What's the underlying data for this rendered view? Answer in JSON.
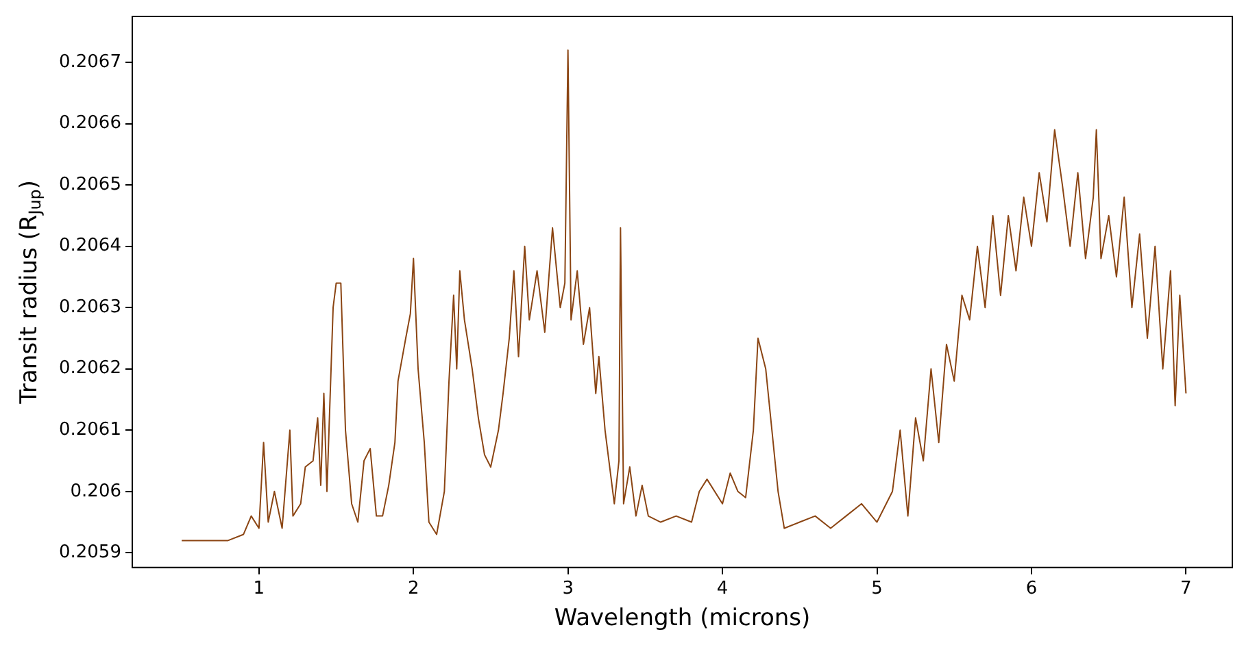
{
  "chart_data": {
    "type": "line",
    "xlabel": "Wavelength (microns)",
    "ylabel": "Transit radius (R$_{Jup}$)",
    "xlim": [
      0.18,
      7.3
    ],
    "xticks": [
      1,
      2,
      3,
      4,
      5,
      6,
      7
    ],
    "ylim": [
      0.205876,
      0.206775
    ],
    "yticks": [
      0.2059,
      0.206,
      0.2061,
      0.2062,
      0.2063,
      0.2064,
      0.2065,
      0.2066,
      0.2067
    ],
    "grid": false,
    "legend": false,
    "marker": "none",
    "line_style": "solid",
    "series": [
      {
        "color": "#8b4513",
        "x": [
          0.5,
          0.8,
          0.9,
          0.95,
          1.0,
          1.03,
          1.06,
          1.1,
          1.15,
          1.2,
          1.22,
          1.27,
          1.3,
          1.35,
          1.38,
          1.4,
          1.42,
          1.44,
          1.48,
          1.5,
          1.53,
          1.56,
          1.6,
          1.64,
          1.68,
          1.72,
          1.76,
          1.8,
          1.84,
          1.88,
          1.9,
          1.95,
          1.98,
          2.0,
          2.03,
          2.07,
          2.1,
          2.15,
          2.2,
          2.23,
          2.26,
          2.28,
          2.3,
          2.33,
          2.38,
          2.42,
          2.46,
          2.5,
          2.55,
          2.58,
          2.62,
          2.65,
          2.68,
          2.72,
          2.75,
          2.8,
          2.85,
          2.9,
          2.95,
          2.98,
          3.0,
          3.02,
          3.06,
          3.1,
          3.14,
          3.18,
          3.2,
          3.24,
          3.28,
          3.3,
          3.33,
          3.34,
          3.36,
          3.4,
          3.44,
          3.48,
          3.52,
          3.6,
          3.7,
          3.8,
          3.85,
          3.9,
          4.0,
          4.05,
          4.1,
          4.15,
          4.2,
          4.23,
          4.28,
          4.32,
          4.36,
          4.4,
          4.5,
          4.6,
          4.7,
          4.8,
          4.9,
          5.0,
          5.1,
          5.15,
          5.2,
          5.25,
          5.3,
          5.35,
          5.4,
          5.45,
          5.5,
          5.55,
          5.6,
          5.65,
          5.7,
          5.75,
          5.8,
          5.85,
          5.9,
          5.95,
          6.0,
          6.05,
          6.1,
          6.15,
          6.2,
          6.25,
          6.3,
          6.35,
          6.4,
          6.42,
          6.45,
          6.5,
          6.55,
          6.6,
          6.65,
          6.7,
          6.75,
          6.8,
          6.85,
          6.9,
          6.93,
          6.96,
          7.0
        ],
        "values": [
          0.20592,
          0.20592,
          0.20593,
          0.20596,
          0.20594,
          0.20608,
          0.20595,
          0.206,
          0.20594,
          0.2061,
          0.20596,
          0.20598,
          0.20604,
          0.20605,
          0.20612,
          0.20601,
          0.20616,
          0.206,
          0.2063,
          0.20634,
          0.20634,
          0.2061,
          0.20598,
          0.20595,
          0.20605,
          0.20607,
          0.20596,
          0.20596,
          0.20601,
          0.20608,
          0.20618,
          0.20625,
          0.20629,
          0.20638,
          0.2062,
          0.20608,
          0.20595,
          0.20593,
          0.206,
          0.20618,
          0.20632,
          0.2062,
          0.20636,
          0.20628,
          0.2062,
          0.20612,
          0.20606,
          0.20604,
          0.2061,
          0.20616,
          0.20625,
          0.20636,
          0.20622,
          0.2064,
          0.20628,
          0.20636,
          0.20626,
          0.20643,
          0.2063,
          0.20634,
          0.20672,
          0.20628,
          0.20636,
          0.20624,
          0.2063,
          0.20616,
          0.20622,
          0.2061,
          0.20602,
          0.20598,
          0.20605,
          0.20643,
          0.20598,
          0.20604,
          0.20596,
          0.20601,
          0.20596,
          0.20595,
          0.20596,
          0.20595,
          0.206,
          0.20602,
          0.20598,
          0.20603,
          0.206,
          0.20599,
          0.2061,
          0.20625,
          0.2062,
          0.2061,
          0.206,
          0.20594,
          0.20595,
          0.20596,
          0.20594,
          0.20596,
          0.20598,
          0.20595,
          0.206,
          0.2061,
          0.20596,
          0.20612,
          0.20605,
          0.2062,
          0.20608,
          0.20624,
          0.20618,
          0.20632,
          0.20628,
          0.2064,
          0.2063,
          0.20645,
          0.20632,
          0.20645,
          0.20636,
          0.20648,
          0.2064,
          0.20652,
          0.20644,
          0.20659,
          0.2065,
          0.2064,
          0.20652,
          0.20638,
          0.20648,
          0.20659,
          0.20638,
          0.20645,
          0.20635,
          0.20648,
          0.2063,
          0.20642,
          0.20625,
          0.2064,
          0.2062,
          0.20636,
          0.20614,
          0.20632,
          0.20616
        ]
      }
    ]
  }
}
